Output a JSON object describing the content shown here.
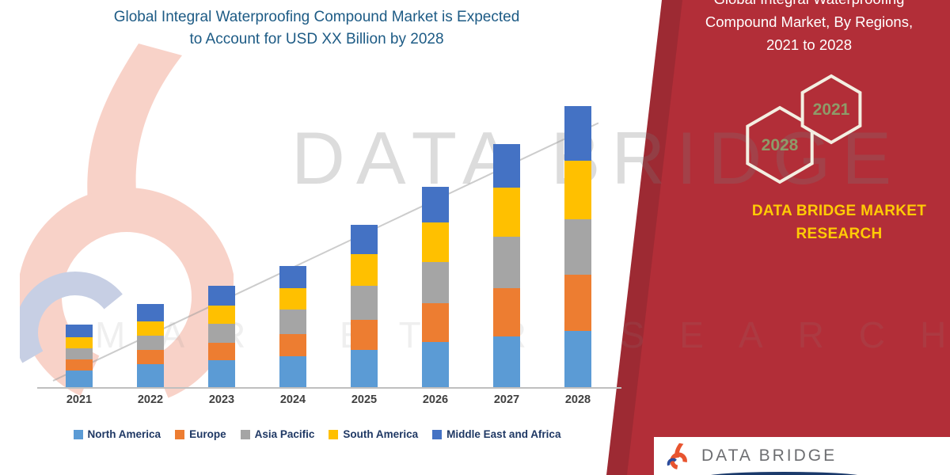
{
  "header": {
    "title_line1": "Global Integral Waterproofing Compound Market is Expected",
    "title_line2": "to Account for USD XX Billion by 2028"
  },
  "chart_data": {
    "type": "bar",
    "stacked": true,
    "title": "Global Integral Waterproofing Compound Market is Expected to Account for USD XX Billion by 2028",
    "xlabel": "",
    "ylabel": "",
    "ylim": [
      0,
      36
    ],
    "grid": false,
    "legend_position": "bottom",
    "categories": [
      "2021",
      "2022",
      "2023",
      "2024",
      "2025",
      "2026",
      "2027",
      "2028"
    ],
    "series": [
      {
        "name": "North America",
        "color": "#5B9BD5",
        "values": [
          2.2,
          3.0,
          3.5,
          4.0,
          4.8,
          5.8,
          6.5,
          7.2
        ]
      },
      {
        "name": "Europe",
        "color": "#ED7D31",
        "values": [
          1.4,
          1.8,
          2.2,
          2.8,
          3.8,
          4.8,
          6.0,
          7.0
        ]
      },
      {
        "name": "Asia Pacific",
        "color": "#A5A5A5",
        "values": [
          1.4,
          1.8,
          2.4,
          3.0,
          4.2,
          5.2,
          6.5,
          7.0
        ]
      },
      {
        "name": "South America",
        "color": "#FFC000",
        "values": [
          1.4,
          1.8,
          2.2,
          2.7,
          4.0,
          5.0,
          6.2,
          7.3
        ]
      },
      {
        "name": "Middle East and Africa",
        "color": "#4472C4",
        "values": [
          1.6,
          2.1,
          2.5,
          2.8,
          3.7,
          4.5,
          5.4,
          6.9
        ]
      }
    ]
  },
  "panel": {
    "heading_line1": "Global Integral Waterproofing",
    "heading_line2": "Compound Market, By Regions,",
    "heading_line3": "2021 to 2028",
    "hex_left_year": "2028",
    "hex_right_year": "2021",
    "brand_line1": "DATA BRIDGE MARKET",
    "brand_line2": "RESEARCH",
    "panel_color": "#B22E38",
    "brand_text_color": "#FFCB05"
  },
  "watermark": {
    "line1": "DATA BRIDGE",
    "line2": "MARKET RESEARCH"
  },
  "footer_logo": {
    "text": "DATA BRIDGE"
  }
}
